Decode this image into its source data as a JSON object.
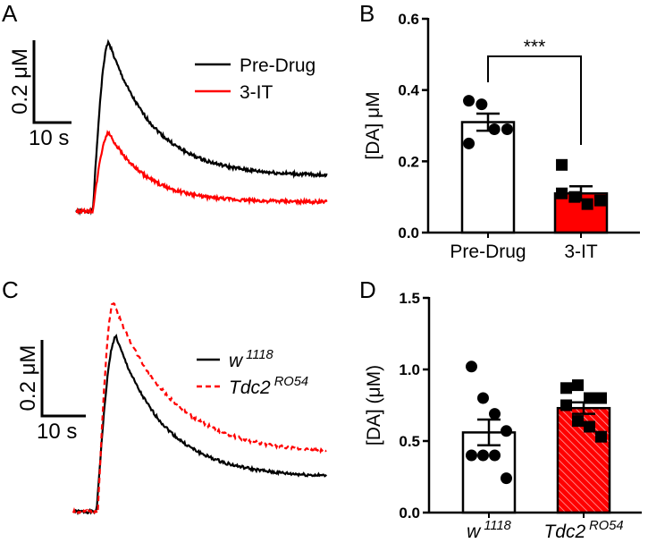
{
  "colors": {
    "black": "#000000",
    "red": "#ff0000"
  },
  "chart_data": [
    {
      "panel": "A",
      "type": "line",
      "scalebar": {
        "y_value": 0.2,
        "y_label": "0.2 μM",
        "x_value": 10,
        "x_label": "10 s"
      },
      "legend": "top-right",
      "series": [
        {
          "name": "Pre-Drug",
          "color": "#000000",
          "style": "solid",
          "onset_s": 4.5,
          "peak_s": 8.8,
          "peak": 0.41,
          "tau_s": 12,
          "plateau": 0.085,
          "duration_s": 67
        },
        {
          "name": "3-IT",
          "color": "#ff0000",
          "style": "solid",
          "onset_s": 4.5,
          "peak_s": 8.8,
          "peak": 0.19,
          "tau_s": 10,
          "plateau": 0.022,
          "duration_s": 67
        }
      ]
    },
    {
      "panel": "B",
      "type": "bar",
      "ylabel": "[DA] μM",
      "ylim": [
        0,
        0.6
      ],
      "yticks": [
        "0.0",
        "0.2",
        "0.4",
        "0.6"
      ],
      "categories": [
        "Pre-Drug",
        "3-IT"
      ],
      "bars": [
        {
          "name": "Pre-Drug",
          "mean": 0.31,
          "sem": 0.024,
          "fill": "#ffffff",
          "marker": "circle",
          "points": [
            0.37,
            0.36,
            0.29,
            0.29,
            0.25
          ]
        },
        {
          "name": "3-IT",
          "mean": 0.11,
          "sem": 0.02,
          "fill": "#ff0000",
          "marker": "square",
          "points": [
            0.19,
            0.1,
            0.08,
            0.09,
            0.11
          ]
        }
      ],
      "significance": "***"
    },
    {
      "panel": "C",
      "type": "line",
      "scalebar": {
        "y_value": 0.2,
        "y_label": "0.2 μM",
        "x_value": 10,
        "x_label": "10 s"
      },
      "legend": "top-right",
      "series": [
        {
          "name": "w",
          "sup": "1118",
          "color": "#000000",
          "style": "solid",
          "onset_s": 5.3,
          "peak_s": 9.8,
          "peak": 0.46,
          "tau_s": 11,
          "plateau": 0.09,
          "duration_s": 58
        },
        {
          "name": "Tdc2",
          "sup": "RO54",
          "color": "#ff0000",
          "style": "dashed",
          "onset_s": 5.6,
          "peak_s": 9.2,
          "peak": 0.55,
          "tau_s": 13,
          "plateau": 0.15,
          "duration_s": 58
        }
      ]
    },
    {
      "panel": "D",
      "type": "bar",
      "ylabel": "[DA] (μM)",
      "ylim": [
        0,
        1.5
      ],
      "yticks": [
        "0.0",
        "0.5",
        "1.0",
        "1.5"
      ],
      "categories": [
        "w1118",
        "Tdc2 RO54"
      ],
      "bars": [
        {
          "name": "w",
          "sup": "1118",
          "mean": 0.56,
          "sem": 0.09,
          "fill": "#ffffff",
          "marker": "circle",
          "points": [
            1.02,
            0.8,
            0.69,
            0.57,
            0.4,
            0.4,
            0.4,
            0.24
          ]
        },
        {
          "name": "Tdc2",
          "sup": "RO54",
          "mean": 0.73,
          "sem": 0.04,
          "fill": "#ff0000",
          "hatch": true,
          "marker": "square",
          "points": [
            0.87,
            0.89,
            0.8,
            0.8,
            0.75,
            0.64,
            0.6,
            0.53
          ]
        }
      ]
    }
  ]
}
